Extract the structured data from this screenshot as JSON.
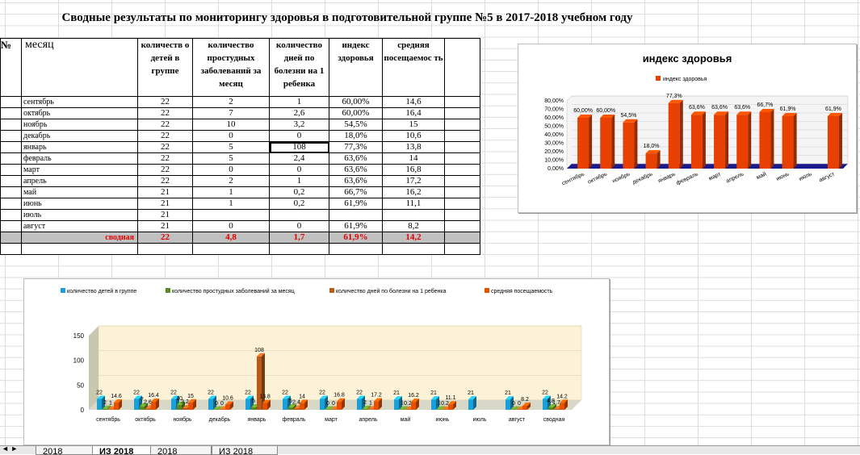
{
  "sheet": {
    "title": "Сводные результаты по мониторингу здоровья в подготовительной группе №5 в 2017-2018 учебном году",
    "headers": [
      "№",
      "месяц",
      "количеств о детей в группе",
      "количество простудных заболеваний за месяц",
      "количество дней по болезни на 1 ребенка",
      "индекс здоровья",
      "средняя посещаемос ть"
    ],
    "rows": [
      [
        "",
        "сентябрь",
        "22",
        "2",
        "1",
        "60,00%",
        "14,6"
      ],
      [
        "",
        "октябрь",
        "22",
        "7",
        "2,6",
        "60,00%",
        "16,4"
      ],
      [
        "",
        "ноябрь",
        "22",
        "10",
        "3,2",
        "54,5%",
        "15"
      ],
      [
        "",
        "декабрь",
        "22",
        "0",
        "0",
        "18,0%",
        "10,6"
      ],
      [
        "",
        "январь",
        "22",
        "5",
        "108",
        "77,3%",
        "13,8"
      ],
      [
        "",
        "февраль",
        "22",
        "5",
        "2,4",
        "63,6%",
        "14"
      ],
      [
        "",
        "март",
        "22",
        "0",
        "0",
        "63,6%",
        "16,8"
      ],
      [
        "",
        "апрель",
        "22",
        "2",
        "1",
        "63,6%",
        "17,2"
      ],
      [
        "",
        "май",
        "21",
        "1",
        "0,2",
        "66,7%",
        "16,2"
      ],
      [
        "",
        "июнь",
        "21",
        "1",
        "0,2",
        "61,9%",
        "11,1"
      ],
      [
        "",
        "июль",
        "21",
        "",
        "",
        "",
        ""
      ],
      [
        "",
        "август",
        "21",
        "0",
        "0",
        "61,9%",
        "8,2"
      ]
    ],
    "summary": [
      "",
      "сводная",
      "22",
      "4,8",
      "1,7",
      "61,9%",
      "14,2"
    ]
  },
  "tabs": [
    "2018",
    "ИЗ 2018",
    "2018",
    "ИЗ 2018"
  ],
  "chart_data": [
    {
      "type": "bar",
      "title": "индекс здоровья",
      "categories": [
        "сентябрь",
        "октябрь",
        "ноябрь",
        "декабрь",
        "январь",
        "февраль",
        "март",
        "апрель",
        "май",
        "июнь",
        "июль",
        "август"
      ],
      "series": [
        {
          "name": "индекс здоровья",
          "values": [
            60.0,
            60.0,
            54.5,
            18.0,
            77.3,
            63.6,
            63.6,
            63.6,
            66.7,
            61.9,
            null,
            61.9
          ]
        }
      ],
      "labels": [
        "60,00%",
        "60,00%",
        "54,5%",
        "18,0%",
        "77,3%",
        "63,6%",
        "63,6%",
        "63,6%",
        "66,7%",
        "61,9%",
        "",
        "61,9%"
      ],
      "yticks": [
        "0,00%",
        "10,00%",
        "20,00%",
        "30,00%",
        "40,00%",
        "50,00%",
        "60,00%",
        "70,00%",
        "80,00%"
      ],
      "ylim": [
        0,
        80
      ],
      "legend": "top",
      "colors": [
        "#e84000"
      ]
    },
    {
      "type": "bar",
      "title": "",
      "categories": [
        "сентябрь",
        "октябрь",
        "ноябрь",
        "декабрь",
        "январь",
        "февраль",
        "март",
        "апрель",
        "май",
        "июнь",
        "июль",
        "август",
        "сводная"
      ],
      "series": [
        {
          "name": "количество детей в группе",
          "values": [
            22,
            22,
            22,
            22,
            22,
            22,
            22,
            22,
            21,
            21,
            21,
            21,
            22
          ]
        },
        {
          "name": "количество простудных заболеваний за месяц",
          "values": [
            2,
            7,
            10,
            0,
            5,
            5,
            0,
            2,
            1,
            1,
            null,
            0,
            4.8
          ]
        },
        {
          "name": "количество дней по болезни на 1 ребенка",
          "values": [
            1,
            2.6,
            3.2,
            0,
            108,
            2.4,
            0,
            1,
            0.2,
            0.2,
            null,
            0,
            1.7
          ]
        },
        {
          "name": "средняя посещаемость",
          "values": [
            14.6,
            16.4,
            15,
            10.6,
            13.8,
            14,
            16.8,
            17.2,
            16.2,
            11.1,
            null,
            8.2,
            14.2
          ]
        }
      ],
      "yticks": [
        "0",
        "50",
        "100",
        "150"
      ],
      "ylim": [
        0,
        150
      ],
      "legend": "top",
      "colors": [
        "#1aa0d8",
        "#5c8c20",
        "#b85a1a",
        "#e85000"
      ]
    }
  ]
}
